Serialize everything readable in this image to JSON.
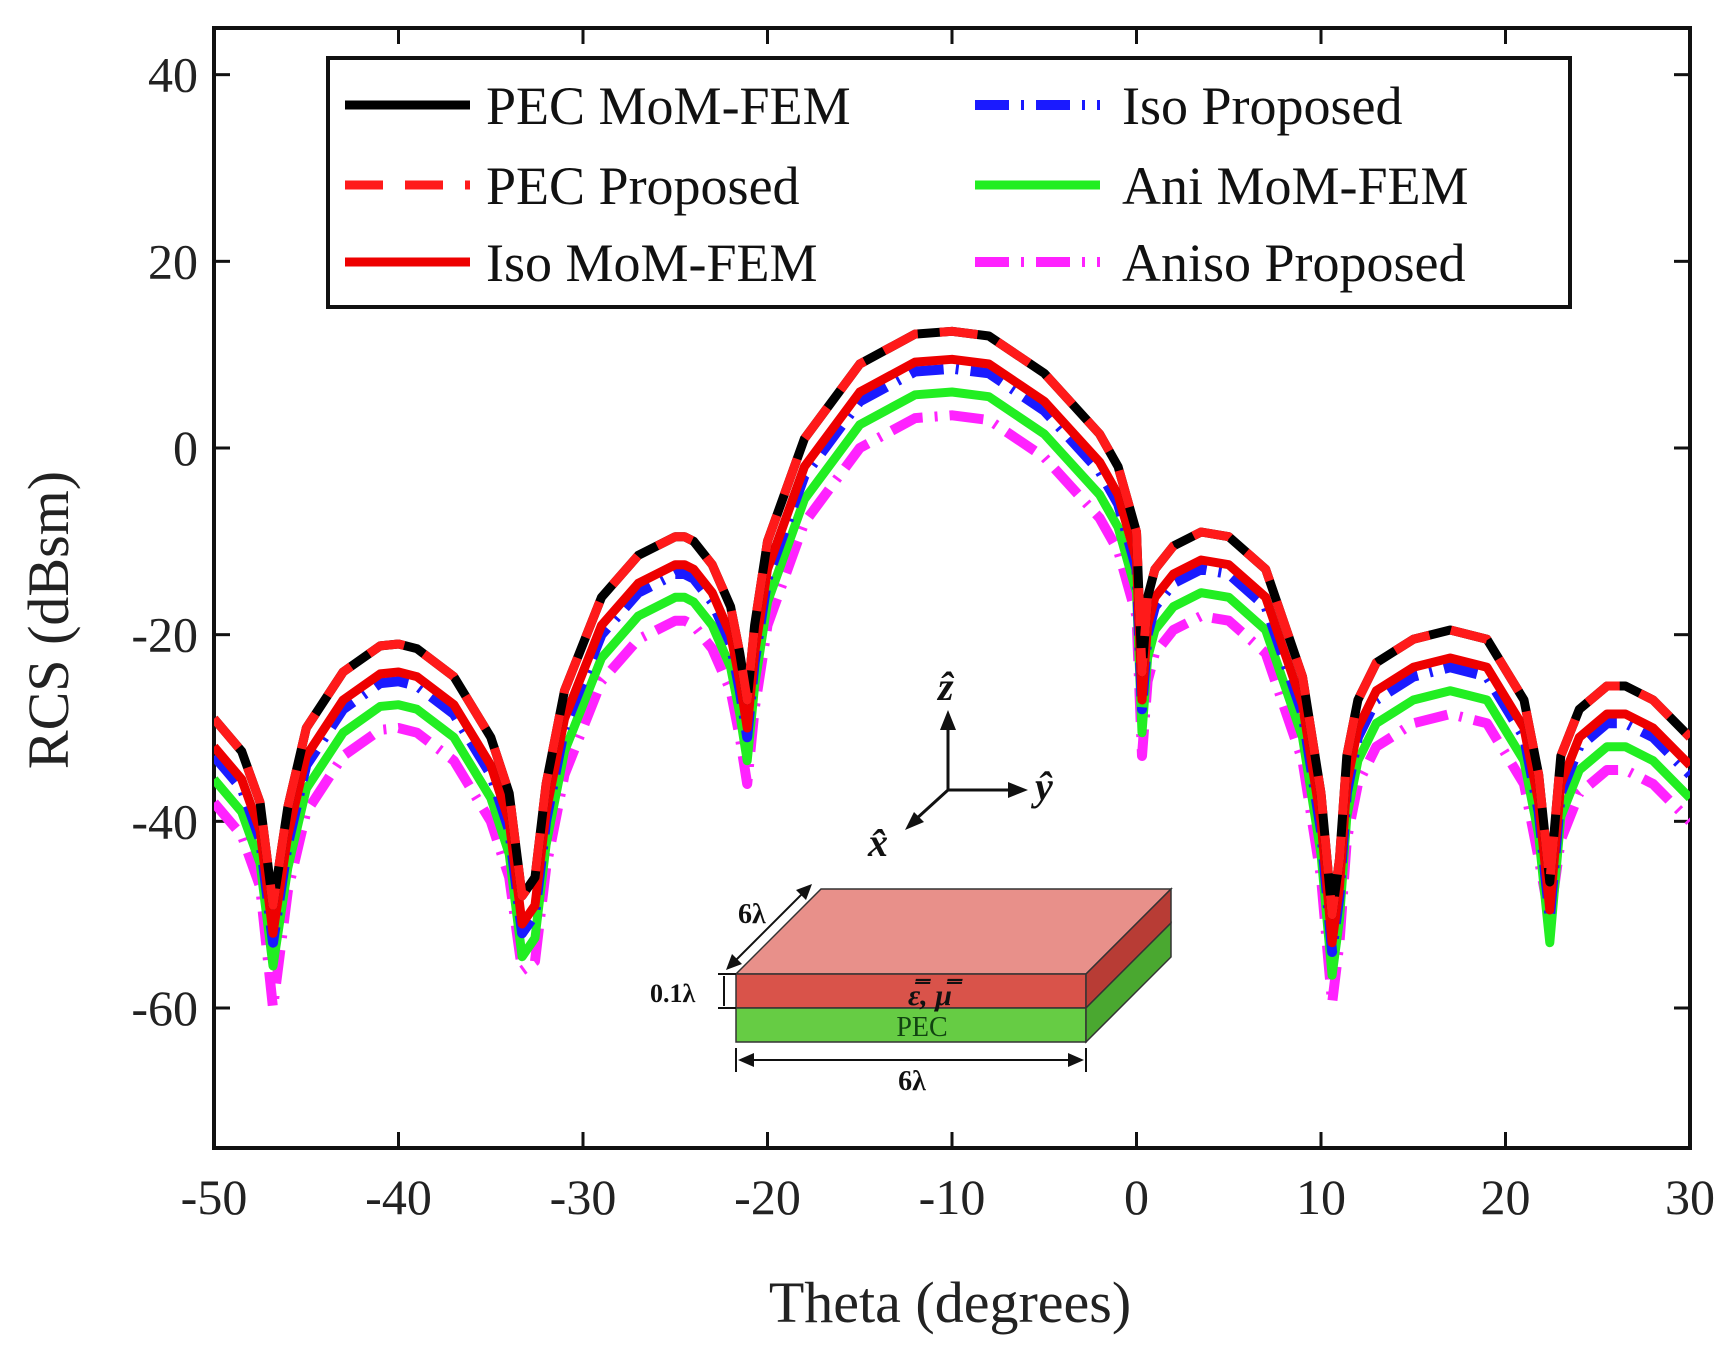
{
  "chart_data": {
    "type": "line",
    "title": "",
    "xlabel": "Theta (degrees)",
    "ylabel": "RCS (dBsm)",
    "xlim": [
      -50,
      30
    ],
    "ylim": [
      -75,
      45
    ],
    "xticks": [
      -50,
      -40,
      -30,
      -20,
      -10,
      0,
      10,
      20,
      30
    ],
    "yticks": [
      40,
      20,
      0,
      -20,
      -40,
      -60
    ],
    "grid": false,
    "legend_position": "top",
    "series": [
      {
        "name": "PEC MoM-FEM",
        "color": "#000000",
        "style": "solid",
        "x": [
          -50,
          -48.5,
          -47.5,
          -46.8,
          -46,
          -45,
          -43,
          -41,
          -40,
          -39,
          -37,
          -35,
          -34,
          -33.3,
          -32.6,
          -32,
          -31,
          -29,
          -27,
          -25,
          -24.5,
          -24,
          -23,
          -22,
          -21.5,
          -21.1,
          -20.7,
          -20,
          -18,
          -15,
          -12,
          -10,
          -8,
          -5,
          -2,
          -1,
          0,
          0.3,
          0.6,
          1,
          2,
          3.5,
          5,
          7,
          9,
          10,
          10.6,
          11,
          11.4,
          12,
          13,
          15,
          17,
          19,
          21,
          21.8,
          22.4,
          23,
          24,
          25.5,
          26.5,
          28,
          30
        ],
        "y": [
          -29,
          -32.5,
          -38,
          -49,
          -38.5,
          -30,
          -24,
          -21.2,
          -21,
          -21.5,
          -24.5,
          -31,
          -37,
          -48,
          -46,
          -36,
          -26,
          -16,
          -11.5,
          -9.5,
          -9.5,
          -10,
          -12.5,
          -17,
          -22,
          -27,
          -19,
          -10,
          1,
          9,
          12.2,
          12.5,
          12,
          8,
          1.5,
          -2,
          -9,
          -24,
          -16,
          -13,
          -10.5,
          -9,
          -9.5,
          -13,
          -24.5,
          -37,
          -50,
          -44,
          -33,
          -27,
          -23,
          -20.5,
          -19.5,
          -20.5,
          -27,
          -35,
          -46.5,
          -33,
          -28,
          -25.5,
          -25.5,
          -27,
          -31
        ]
      },
      {
        "name": "PEC Proposed",
        "color": "#ff1a1a",
        "style": "dashed",
        "x": [
          -50,
          -48.5,
          -47.5,
          -46.8,
          -46,
          -45,
          -43,
          -41,
          -40,
          -39,
          -37,
          -35,
          -34,
          -33.3,
          -32.6,
          -32,
          -31,
          -29,
          -27,
          -25,
          -24.5,
          -24,
          -23,
          -22,
          -21.5,
          -21.1,
          -20.7,
          -20,
          -18,
          -15,
          -12,
          -10,
          -8,
          -5,
          -2,
          -1,
          0,
          0.3,
          0.6,
          1,
          2,
          3.5,
          5,
          7,
          9,
          10,
          10.6,
          11,
          11.4,
          12,
          13,
          15,
          17,
          19,
          21,
          21.8,
          22.4,
          23,
          24,
          25.5,
          26.5,
          28,
          30
        ],
        "y": [
          -29,
          -32.5,
          -38,
          -49,
          -38.5,
          -30,
          -24,
          -21.2,
          -21,
          -21.5,
          -24.5,
          -31,
          -37,
          -48,
          -46,
          -36,
          -26,
          -16,
          -11.5,
          -9.5,
          -9.5,
          -10,
          -12.5,
          -17,
          -22,
          -27,
          -19,
          -10,
          1,
          9,
          12.2,
          12.5,
          12,
          8,
          1.5,
          -2,
          -9,
          -24,
          -16,
          -13,
          -10.5,
          -9,
          -9.5,
          -13,
          -24.5,
          -37,
          -50,
          -44,
          -33,
          -27,
          -23,
          -20.5,
          -19.5,
          -20.5,
          -27,
          -35,
          -46.5,
          -33,
          -28,
          -25.5,
          -25.5,
          -27,
          -31
        ]
      },
      {
        "name": "Iso MoM-FEM",
        "color": "#ee0000",
        "style": "solid",
        "x": [
          -50,
          -48.5,
          -47.5,
          -46.8,
          -46,
          -45,
          -43,
          -41,
          -40,
          -39,
          -37,
          -35,
          -34,
          -33.3,
          -32.6,
          -32,
          -31,
          -29,
          -27,
          -25,
          -24.5,
          -24,
          -23,
          -22,
          -21.5,
          -21.1,
          -20.7,
          -20,
          -18,
          -15,
          -12,
          -10,
          -8,
          -5,
          -2,
          -1,
          0,
          0.3,
          0.6,
          1,
          2,
          3.5,
          5,
          7,
          9,
          10,
          10.6,
          11,
          11.4,
          12,
          13,
          15,
          17,
          19,
          21,
          21.8,
          22.4,
          23,
          24,
          25.5,
          26.5,
          28,
          30
        ],
        "y": [
          -32,
          -35.5,
          -41,
          -52,
          -41.5,
          -33,
          -27,
          -24.2,
          -24,
          -24.5,
          -27.5,
          -34,
          -40,
          -51,
          -49,
          -39,
          -29,
          -19,
          -14.5,
          -12.5,
          -12.5,
          -13,
          -15.5,
          -20,
          -25,
          -30,
          -22,
          -13,
          -2,
          6,
          9.2,
          9.5,
          9,
          5,
          -1.5,
          -5,
          -12,
          -27,
          -19,
          -16,
          -13.5,
          -12,
          -12.5,
          -16,
          -27.5,
          -40,
          -53,
          -47,
          -36,
          -30,
          -26,
          -23.5,
          -22.5,
          -23.5,
          -30,
          -38,
          -49.5,
          -36,
          -31,
          -28.5,
          -28.5,
          -30,
          -34
        ]
      },
      {
        "name": "Iso Proposed",
        "color": "#1a1aff",
        "style": "dashdot",
        "x": [
          -50,
          -48.5,
          -47.5,
          -46.8,
          -46,
          -45,
          -43,
          -41,
          -40,
          -39,
          -37,
          -35,
          -34,
          -33.3,
          -32.6,
          -32,
          -31,
          -29,
          -27,
          -25,
          -24.5,
          -24,
          -23,
          -22,
          -21.5,
          -21.1,
          -20.7,
          -20,
          -18,
          -15,
          -12,
          -10,
          -8,
          -5,
          -2,
          -1,
          0,
          0.3,
          0.6,
          1,
          2,
          3.5,
          5,
          7,
          9,
          10,
          10.6,
          11,
          11.4,
          12,
          13,
          15,
          17,
          19,
          21,
          21.8,
          22.4,
          23,
          24,
          25.5,
          26.5,
          28,
          30
        ],
        "y": [
          -33,
          -36.5,
          -42,
          -53,
          -42.5,
          -34,
          -28,
          -25.2,
          -25,
          -25.5,
          -28.5,
          -35,
          -41,
          -52,
          -50,
          -40,
          -30,
          -20,
          -15.5,
          -13.5,
          -13.5,
          -14,
          -16.5,
          -21,
          -26,
          -31,
          -23,
          -14,
          -3,
          5,
          8.2,
          8.5,
          8,
          4,
          -2.5,
          -6,
          -13,
          -28,
          -20,
          -17,
          -14.5,
          -13,
          -13.5,
          -17,
          -28.5,
          -41,
          -54,
          -48,
          -37,
          -31,
          -27,
          -24.5,
          -23.5,
          -24.5,
          -31,
          -39,
          -50.5,
          -37,
          -32,
          -29.5,
          -29.5,
          -31,
          -35
        ]
      },
      {
        "name": "Ani MoM-FEM",
        "color": "#22ee22",
        "style": "solid",
        "x": [
          -50,
          -48.5,
          -47.5,
          -46.8,
          -46,
          -45,
          -43,
          -41,
          -40,
          -39,
          -37,
          -35,
          -34,
          -33.3,
          -32.6,
          -32,
          -31,
          -29,
          -27,
          -25,
          -24.5,
          -24,
          -23,
          -22,
          -21.5,
          -21.1,
          -20.7,
          -20,
          -18,
          -15,
          -12,
          -10,
          -8,
          -5,
          -2,
          -1,
          0,
          0.3,
          0.6,
          1,
          2,
          3.5,
          5,
          7,
          9,
          10,
          10.6,
          11,
          11.4,
          12,
          13,
          15,
          17,
          19,
          21,
          21.8,
          22.4,
          23,
          24,
          25.5,
          26.5,
          28,
          30
        ],
        "y": [
          -35.5,
          -39,
          -44.5,
          -55.5,
          -45,
          -36.5,
          -30.5,
          -27.7,
          -27.5,
          -28,
          -31,
          -37.5,
          -43.5,
          -54.5,
          -52.5,
          -42.5,
          -32.5,
          -22.5,
          -18,
          -16,
          -16,
          -16.5,
          -19,
          -23.5,
          -28.5,
          -33.5,
          -25.5,
          -16.5,
          -5.5,
          2.5,
          5.7,
          6,
          5.5,
          1.5,
          -5,
          -8.5,
          -15.5,
          -30.5,
          -22.5,
          -19.5,
          -17,
          -15.5,
          -16,
          -19.5,
          -31,
          -43.5,
          -56.5,
          -50.5,
          -39.5,
          -33.5,
          -29.5,
          -27,
          -26,
          -27,
          -33.5,
          -41.5,
          -53,
          -39.5,
          -34.5,
          -32,
          -32,
          -33.5,
          -37.5
        ]
      },
      {
        "name": "Aniso Proposed",
        "color": "#ff22ff",
        "style": "dashdot",
        "x": [
          -50,
          -48.5,
          -47.5,
          -46.8,
          -46,
          -45,
          -43,
          -41,
          -40,
          -39,
          -37,
          -35,
          -34,
          -33.3,
          -32.6,
          -32,
          -31,
          -29,
          -27,
          -25,
          -24.5,
          -24,
          -23,
          -22,
          -21.5,
          -21.1,
          -20.7,
          -20,
          -18,
          -15,
          -12,
          -10,
          -8,
          -5,
          -2,
          -1,
          0,
          0.3,
          0.6,
          1,
          2,
          3.5,
          5,
          7,
          9,
          10,
          10.6,
          11,
          11.4,
          12,
          13,
          15,
          17,
          19,
          21,
          21.8,
          22.4,
          23,
          24,
          25.5,
          26.5,
          28,
          30
        ],
        "y": [
          -38,
          -41.5,
          -47,
          -60,
          -47.5,
          -39,
          -33,
          -30.2,
          -30,
          -30.5,
          -33.5,
          -40,
          -46,
          -56,
          -55,
          -45,
          -35,
          -25,
          -20.5,
          -18.5,
          -18.5,
          -19,
          -21.5,
          -26,
          -31,
          -36,
          -28,
          -19,
          -8,
          0,
          3.2,
          3.5,
          3,
          -1,
          -7.5,
          -11,
          -18,
          -33,
          -25,
          -22,
          -19.5,
          -18,
          -18.5,
          -22,
          -33.5,
          -46,
          -59.5,
          -53,
          -42,
          -36,
          -32,
          -29.5,
          -28.5,
          -29.5,
          -36,
          -44,
          -50.5,
          -42,
          -37,
          -34.5,
          -34.5,
          -36,
          -40
        ]
      }
    ],
    "inset": {
      "axis_labels": [
        "ẑ",
        "ŷ",
        "x̂"
      ],
      "dim_width": "6λ",
      "dim_depth": "6λ",
      "dim_thickness": "0.1λ",
      "material_label": "ε̿, μ̿",
      "base_label": "PEC",
      "colors": {
        "top_face": "#e8908a",
        "front_layer": "#d9534a",
        "side_layer": "#b83c35",
        "pec_front": "#66cc44",
        "pec_side": "#4aa830"
      }
    }
  }
}
